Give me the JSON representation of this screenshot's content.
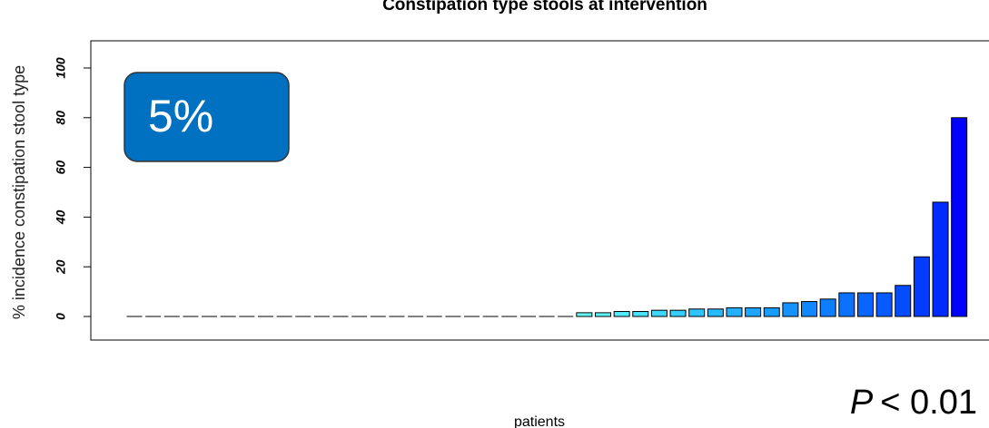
{
  "chart_data": {
    "type": "bar",
    "title": "Constipation type stools at intervention",
    "x_label": "patients",
    "y_label": "% incidence constipation stool type",
    "values": [
      0,
      0,
      0,
      0,
      0,
      0,
      0,
      0,
      0,
      0,
      0,
      0,
      0,
      0,
      0,
      0,
      0,
      0,
      0,
      0,
      0,
      0,
      0,
      0,
      1.5,
      1.5,
      2,
      2,
      2.5,
      2.5,
      3,
      3,
      3.5,
      3.5,
      3.5,
      5.5,
      6,
      7,
      9.5,
      9.5,
      9.5,
      12.5,
      24,
      46,
      80
    ],
    "colors": [
      "#66ffff",
      "#66ffff",
      "#66ffff",
      "#66ffff",
      "#66ffff",
      "#66ffff",
      "#66ffff",
      "#66ffff",
      "#66ffff",
      "#66ffff",
      "#66ffff",
      "#66ffff",
      "#66ffff",
      "#66ffff",
      "#66ffff",
      "#66ffff",
      "#66ffff",
      "#66ffff",
      "#66ffff",
      "#66ffff",
      "#66ffff",
      "#66ffff",
      "#66ffff",
      "#66ffff",
      "#66ffff",
      "#5cf6ff",
      "#52ecff",
      "#48e2ff",
      "#3ed8ff",
      "#34ceff",
      "#2ec4ff",
      "#28baff",
      "#22b0ff",
      "#1ca6ff",
      "#189cff",
      "#1492ff",
      "#1088ff",
      "#0c7eff",
      "#0a72ff",
      "#0866ff",
      "#065aff",
      "#044cff",
      "#033cff",
      "#012aff",
      "#0000ff"
    ],
    "ylim": [
      0,
      100
    ],
    "yticks": [
      0,
      20,
      40,
      60,
      80,
      100
    ],
    "annotation": "5%",
    "p_value": {
      "symbol": "P",
      "text": "< 0.01"
    }
  }
}
